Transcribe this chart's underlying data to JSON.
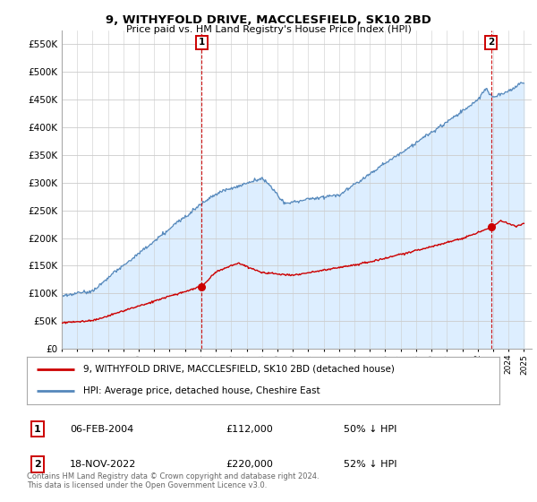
{
  "title": "9, WITHYFOLD DRIVE, MACCLESFIELD, SK10 2BD",
  "subtitle": "Price paid vs. HM Land Registry's House Price Index (HPI)",
  "ytick_values": [
    0,
    50000,
    100000,
    150000,
    200000,
    250000,
    300000,
    350000,
    400000,
    450000,
    500000,
    550000
  ],
  "ylim": [
    0,
    575000
  ],
  "xlim_start": 1995.0,
  "xlim_end": 2025.5,
  "sale1_x": 2004.09,
  "sale1_y": 112000,
  "sale2_x": 2022.88,
  "sale2_y": 220000,
  "legend_line1": "9, WITHYFOLD DRIVE, MACCLESFIELD, SK10 2BD (detached house)",
  "legend_line2": "HPI: Average price, detached house, Cheshire East",
  "annot1_label": "1",
  "annot1_date": "06-FEB-2004",
  "annot1_price": "£112,000",
  "annot1_hpi": "50% ↓ HPI",
  "annot2_label": "2",
  "annot2_date": "18-NOV-2022",
  "annot2_price": "£220,000",
  "annot2_hpi": "52% ↓ HPI",
  "footer": "Contains HM Land Registry data © Crown copyright and database right 2024.\nThis data is licensed under the Open Government Licence v3.0.",
  "red_color": "#cc0000",
  "blue_color": "#5588bb",
  "blue_fill": "#ddeeff",
  "bg_color": "#ffffff",
  "grid_color": "#cccccc"
}
